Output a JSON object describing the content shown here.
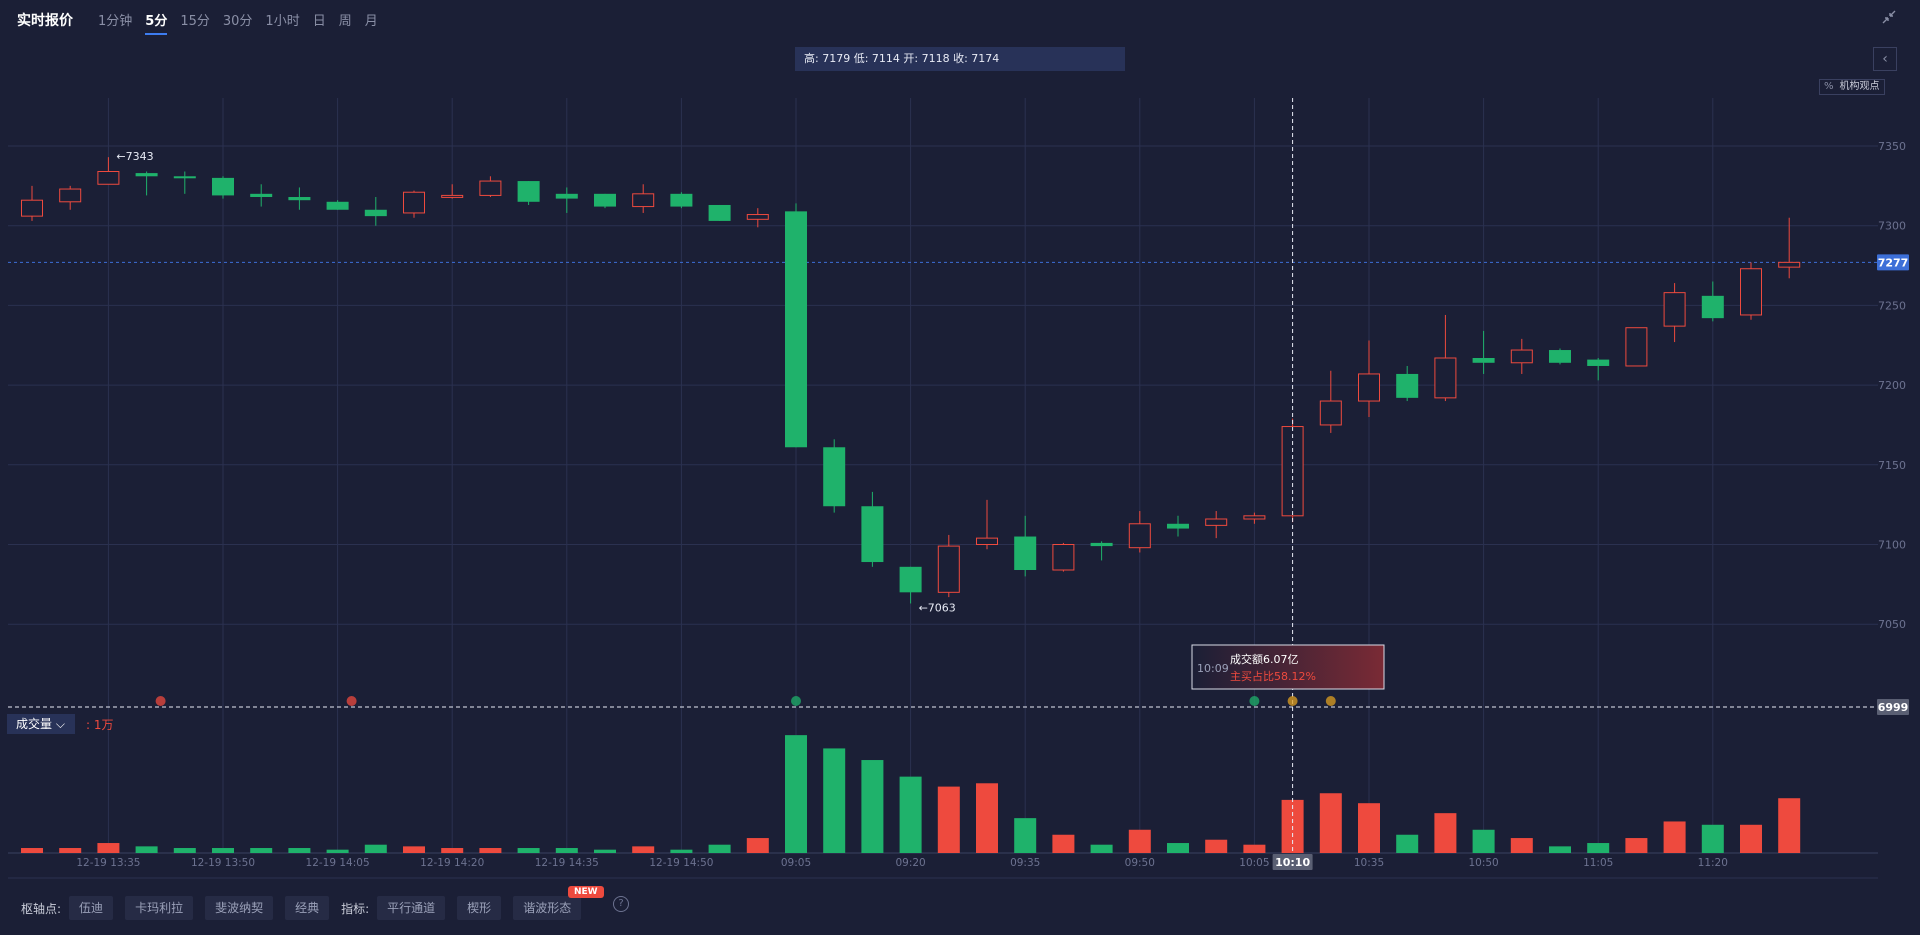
{
  "header": {
    "title": "实时报价",
    "periods": [
      "1分钟",
      "5分",
      "15分",
      "30分",
      "1小时",
      "日",
      "周",
      "月"
    ],
    "active_period": "5分"
  },
  "ohlc_tooltip": "高: 7179 低: 7114 开: 7118 收: 7174",
  "institution_view": {
    "pct": "%",
    "label": "机构观点"
  },
  "volume_panel": {
    "label": "成交量",
    "unit": ": 1万"
  },
  "hover_tooltip": {
    "time": "10:09",
    "line1": "成交额6.07亿",
    "line2": "主买占比58.12%"
  },
  "indicators": {
    "pivot_label": "枢轴点:",
    "pivot_buttons": [
      "伍迪",
      "卡玛利拉",
      "斐波纳契",
      "经典"
    ],
    "indicator_label": "指标:",
    "indicator_buttons": [
      "平行通道",
      "楔形",
      "谐波形态"
    ],
    "new_badge": "NEW",
    "help": "?"
  },
  "colors": {
    "up": "#ee4a3e",
    "down": "#1fb26b",
    "bg": "#1b1f36",
    "accent": "#3d7cf0"
  },
  "chart_data": {
    "type": "candlestick",
    "y_ticks": [
      7350,
      7300,
      7250,
      7200,
      7150,
      7100,
      7050
    ],
    "ylim": [
      6999,
      7360
    ],
    "current_price": "7277",
    "cursor_price": "6999",
    "cursor_time": "10:10",
    "max_label": "←7343",
    "min_label": "←7063",
    "x_ticks": [
      {
        "i": 2,
        "label": "12-19 13:35"
      },
      {
        "i": 5,
        "label": "12-19 13:50"
      },
      {
        "i": 8,
        "label": "12-19 14:05"
      },
      {
        "i": 11,
        "label": "12-19 14:20"
      },
      {
        "i": 14,
        "label": "12-19 14:35"
      },
      {
        "i": 17,
        "label": "12-19 14:50"
      },
      {
        "i": 20,
        "label": "09:05"
      },
      {
        "i": 23,
        "label": "09:20"
      },
      {
        "i": 26,
        "label": "09:35"
      },
      {
        "i": 29,
        "label": "09:50"
      },
      {
        "i": 32,
        "label": "10:05"
      },
      {
        "i": 35,
        "label": "10:35"
      },
      {
        "i": 38,
        "label": "10:50"
      },
      {
        "i": 41,
        "label": "11:05"
      },
      {
        "i": 44,
        "label": "11:20"
      }
    ],
    "candles": [
      {
        "o": 7306,
        "h": 7325,
        "l": 7303,
        "c": 7316
      },
      {
        "o": 7315,
        "h": 7325,
        "l": 7310,
        "c": 7323
      },
      {
        "o": 7326,
        "h": 7343,
        "l": 7326,
        "c": 7334
      },
      {
        "o": 7333,
        "h": 7334,
        "l": 7319,
        "c": 7331
      },
      {
        "o": 7331,
        "h": 7334,
        "l": 7320,
        "c": 7330
      },
      {
        "o": 7330,
        "h": 7331,
        "l": 7317,
        "c": 7319
      },
      {
        "o": 7320,
        "h": 7326,
        "l": 7312,
        "c": 7318
      },
      {
        "o": 7318,
        "h": 7324,
        "l": 7310,
        "c": 7316
      },
      {
        "o": 7315,
        "h": 7316,
        "l": 7310,
        "c": 7310
      },
      {
        "o": 7310,
        "h": 7318,
        "l": 7300,
        "c": 7306
      },
      {
        "o": 7308,
        "h": 7322,
        "l": 7305,
        "c": 7321
      },
      {
        "o": 7319,
        "h": 7326,
        "l": 7317,
        "c": 7319
      },
      {
        "o": 7319,
        "h": 7331,
        "l": 7318,
        "c": 7328
      },
      {
        "o": 7328,
        "h": 7328,
        "l": 7313,
        "c": 7315
      },
      {
        "o": 7320,
        "h": 7324,
        "l": 7308,
        "c": 7317
      },
      {
        "o": 7320,
        "h": 7320,
        "l": 7311,
        "c": 7312
      },
      {
        "o": 7312,
        "h": 7326,
        "l": 7308,
        "c": 7320
      },
      {
        "o": 7320,
        "h": 7321,
        "l": 7311,
        "c": 7312
      },
      {
        "o": 7313,
        "h": 7313,
        "l": 7303,
        "c": 7303
      },
      {
        "o": 7304,
        "h": 7311,
        "l": 7299,
        "c": 7307
      },
      {
        "o": 7309,
        "h": 7314,
        "l": 7161,
        "c": 7161
      },
      {
        "o": 7161,
        "h": 7166,
        "l": 7120,
        "c": 7124
      },
      {
        "o": 7124,
        "h": 7133,
        "l": 7086,
        "c": 7089
      },
      {
        "o": 7086,
        "h": 7086,
        "l": 7063,
        "c": 7070
      },
      {
        "o": 7070,
        "h": 7106,
        "l": 7067,
        "c": 7099
      },
      {
        "o": 7100,
        "h": 7128,
        "l": 7097,
        "c": 7104
      },
      {
        "o": 7105,
        "h": 7118,
        "l": 7080,
        "c": 7084
      },
      {
        "o": 7084,
        "h": 7101,
        "l": 7083,
        "c": 7100
      },
      {
        "o": 7101,
        "h": 7102,
        "l": 7090,
        "c": 7099
      },
      {
        "o": 7098,
        "h": 7121,
        "l": 7095,
        "c": 7113
      },
      {
        "o": 7113,
        "h": 7118,
        "l": 7105,
        "c": 7110
      },
      {
        "o": 7112,
        "h": 7121,
        "l": 7104,
        "c": 7116
      },
      {
        "o": 7116,
        "h": 7120,
        "l": 7113,
        "c": 7118
      },
      {
        "o": 7118,
        "h": 7179,
        "l": 7114,
        "c": 7174
      },
      {
        "o": 7175,
        "h": 7209,
        "l": 7170,
        "c": 7190
      },
      {
        "o": 7190,
        "h": 7228,
        "l": 7180,
        "c": 7207
      },
      {
        "o": 7207,
        "h": 7212,
        "l": 7190,
        "c": 7192
      },
      {
        "o": 7192,
        "h": 7244,
        "l": 7190,
        "c": 7217
      },
      {
        "o": 7217,
        "h": 7234,
        "l": 7207,
        "c": 7214
      },
      {
        "o": 7214,
        "h": 7229,
        "l": 7207,
        "c": 7222
      },
      {
        "o": 7222,
        "h": 7223,
        "l": 7213,
        "c": 7214
      },
      {
        "o": 7216,
        "h": 7217,
        "l": 7203,
        "c": 7212
      },
      {
        "o": 7212,
        "h": 7236,
        "l": 7212,
        "c": 7236
      },
      {
        "o": 7237,
        "h": 7264,
        "l": 7227,
        "c": 7258
      },
      {
        "o": 7256,
        "h": 7265,
        "l": 7240,
        "c": 7242
      },
      {
        "o": 7244,
        "h": 7277,
        "l": 7241,
        "c": 7273
      },
      {
        "o": 7274,
        "h": 7305,
        "l": 7267,
        "c": 7277
      }
    ],
    "volume": [
      3,
      3,
      6,
      4,
      3,
      3,
      3,
      3,
      2,
      5,
      4,
      3,
      3,
      3,
      3,
      2,
      4,
      2,
      5,
      9,
      71,
      63,
      56,
      46,
      40,
      42,
      21,
      11,
      5,
      14,
      6,
      8,
      5,
      32,
      36,
      30,
      11,
      24,
      14,
      9,
      4,
      6,
      9,
      19,
      17,
      17,
      33
    ]
  }
}
